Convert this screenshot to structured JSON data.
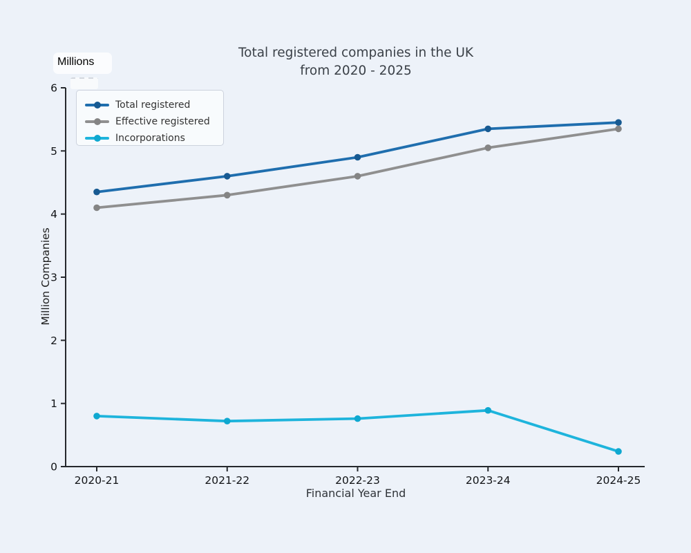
{
  "page": {
    "background": "#edf2f9",
    "units_label": "Millions"
  },
  "chart_data": {
    "type": "line",
    "title": "Total registered companies in the UK",
    "subtitle": "from 2020 - 2025",
    "xlabel": "Financial Year End",
    "ylabel": "Million Companies",
    "categories": [
      "2020-21",
      "2021-22",
      "2022-23",
      "2023-24",
      "2024-25"
    ],
    "y_ticks": [
      0,
      1,
      2,
      3,
      4,
      5,
      6
    ],
    "ylim": [
      0,
      6
    ],
    "grid": false,
    "legend_position": "upper left",
    "axis_color": "#25282c",
    "tick_label_color": "#111316",
    "series": [
      {
        "name": "Total registered",
        "color": "#1f6eae",
        "marker_color": "#175a92",
        "values": [
          4.35,
          4.6,
          4.9,
          5.35,
          5.45
        ]
      },
      {
        "name": "Effective registered",
        "color": "#8f8f8f",
        "marker_color": "#848484",
        "values": [
          4.1,
          4.3,
          4.6,
          5.05,
          5.35
        ]
      },
      {
        "name": "Incorporations",
        "color": "#1eb4dc",
        "marker_color": "#0fa8d0",
        "values": [
          0.8,
          0.72,
          0.76,
          0.89,
          0.24
        ]
      }
    ]
  }
}
